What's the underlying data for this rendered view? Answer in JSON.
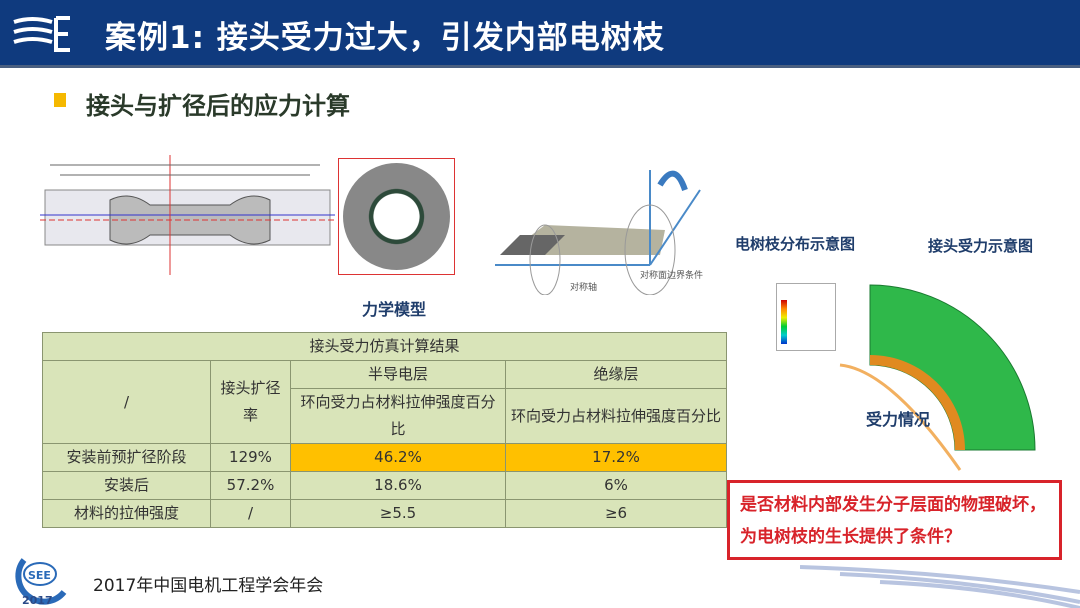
{
  "header": {
    "title": "案例1: 接头受力过大，引发内部电树枝"
  },
  "section": {
    "title": "接头与扩径后的应力计算"
  },
  "figures": {
    "model_label": "力学模型",
    "symmetry_axis": "对称轴",
    "boundary_label": "对称面边界条件",
    "tree_dist_label": "电树枝分布示意图",
    "joint_force_label": "接头受力示意图",
    "force_label": "受力情况"
  },
  "table": {
    "title": "接头受力仿真计算结果",
    "corner": "/",
    "col_rate": "接头扩径率",
    "col_semi": "半导电层",
    "col_ins": "绝缘层",
    "sub_semi": "环向受力占材料拉伸强度百分比",
    "sub_ins": "环向受力占材料拉伸强度百分比",
    "rows": [
      {
        "label": "安装前预扩径阶段",
        "rate": "129%",
        "semi": "46.2%",
        "ins": "17.2%",
        "highlight": true
      },
      {
        "label": "安装后",
        "rate": "57.2%",
        "semi": "18.6%",
        "ins": "6%"
      },
      {
        "label": "材料的拉伸强度",
        "rate": "/",
        "semi": "≥5.5",
        "ins": "≥6"
      }
    ]
  },
  "callout": {
    "text": "是否材料内部发生分子层面的物理破坏，为电树枝的生长提供了条件？"
  },
  "footer": {
    "text": "2017年中国电机工程学会年会",
    "logo_text": "SEE 2017"
  },
  "colors": {
    "header_bg": "#0f3a7e",
    "bullet": "#f5b800",
    "highlight": "#ffc000",
    "callout_border": "#d8232a",
    "table_bg": "#d9e4b9"
  }
}
